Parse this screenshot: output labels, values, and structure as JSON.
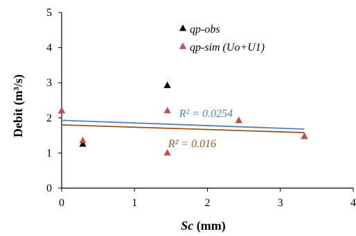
{
  "chart_data": {
    "type": "scatter",
    "title": "",
    "xlabel_symbol": "Sc",
    "xlabel_unit": "(mm)",
    "ylabel_main": "Debit",
    "ylabel_unit": "(m³/s)",
    "xlim": [
      0,
      4
    ],
    "ylim": [
      0,
      5
    ],
    "xticks": [
      "0",
      "1",
      "2",
      "3",
      "4"
    ],
    "yticks": [
      "0",
      "1",
      "2",
      "3",
      "4",
      "5"
    ],
    "grid": false,
    "legend_position": "top-right",
    "series": [
      {
        "name": "qp-obs",
        "marker": "triangle",
        "color": "#000000",
        "x": [
          0,
          0.29,
          1.45,
          2.43,
          3.33
        ],
        "y": [
          2.2,
          1.25,
          2.92,
          1.92,
          1.47
        ]
      },
      {
        "name": "qp-sim (Uo+U1)",
        "marker": "triangle",
        "color": "#c0504d",
        "x": [
          0,
          0.29,
          1.45,
          1.45,
          2.43,
          3.33
        ],
        "y": [
          2.2,
          1.35,
          1.0,
          2.2,
          1.92,
          1.47
        ]
      }
    ],
    "trendlines": [
      {
        "label": "R² = 0.0254",
        "color": "#4f81bd",
        "x": [
          0,
          3.33
        ],
        "y": [
          1.93,
          1.68
        ]
      },
      {
        "label": "R² = 0.016",
        "color": "#a0521e",
        "x": [
          0,
          3.33
        ],
        "y": [
          1.8,
          1.58
        ]
      }
    ]
  }
}
